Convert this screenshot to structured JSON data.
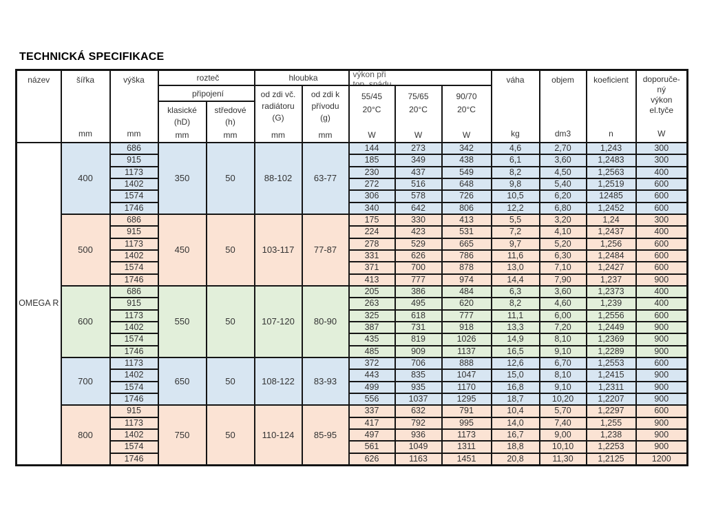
{
  "page": {
    "title": "TECHNICKÁ SPECIFIKACE"
  },
  "colors": {
    "blue": "#d8e6f2",
    "salmon": "#fbe3d4",
    "green": "#e2efda"
  },
  "table": {
    "product_name": "OMEGA R",
    "header": {
      "name": "název",
      "width": "šířka",
      "height": "výška",
      "pitch_group": "rozteč",
      "connection": "připojení",
      "pitch_classic": "klasické\n(hD)",
      "pitch_central": "středové\n(h)",
      "depth_group": "hloubka",
      "depth_g": "od zdi  vč.\nradiátoru\n(G)",
      "depth_small_g": "od zdi  k\npřívodu\n(g)",
      "power_group": "výkon při\ntop. spádu",
      "power_5545": "55/45\n20°C",
      "power_7565": "75/65\n20°C",
      "power_9070": "90/70\n20°C",
      "weight": "váha",
      "volume": "objem",
      "coefficient": "koeficient",
      "recommended": "doporuče-\nný\nvýkon\nel.tyče",
      "unit_mm": "mm",
      "unit_w": "W",
      "unit_kg": "kg",
      "unit_dm3": "dm3",
      "unit_n": "n"
    },
    "groups": [
      {
        "width": "400",
        "color": "blue",
        "pitch_classic": "350",
        "pitch_central": "50",
        "depth_g": "88-102",
        "depth_small_g": "63-77",
        "rows": [
          [
            "686",
            "144",
            "273",
            "342",
            "4,6",
            "2,70",
            "1,243",
            "300"
          ],
          [
            "915",
            "185",
            "349",
            "438",
            "6,1",
            "3,60",
            "1,2483",
            "300"
          ],
          [
            "1173",
            "230",
            "437",
            "549",
            "8,2",
            "4,50",
            "1,2563",
            "400"
          ],
          [
            "1402",
            "272",
            "516",
            "648",
            "9,8",
            "5,40",
            "1,2519",
            "600"
          ],
          [
            "1574",
            "306",
            "578",
            "726",
            "10,5",
            "6,20",
            "12485",
            "600"
          ],
          [
            "1746",
            "340",
            "642",
            "806",
            "12,2",
            "6,80",
            "1,2452",
            "600"
          ]
        ]
      },
      {
        "width": "500",
        "color": "salmon",
        "pitch_classic": "450",
        "pitch_central": "50",
        "depth_g": "103-117",
        "depth_small_g": "77-87",
        "rows": [
          [
            "686",
            "175",
            "330",
            "413",
            "5,5",
            "3,20",
            "1,24",
            "300"
          ],
          [
            "915",
            "224",
            "423",
            "531",
            "7,2",
            "4,10",
            "1,2437",
            "400"
          ],
          [
            "1173",
            "278",
            "529",
            "665",
            "9,7",
            "5,20",
            "1,256",
            "600"
          ],
          [
            "1402",
            "331",
            "626",
            "786",
            "11,6",
            "6,30",
            "1,2484",
            "600"
          ],
          [
            "1574",
            "371",
            "700",
            "878",
            "13,0",
            "7,10",
            "1,2427",
            "600"
          ],
          [
            "1746",
            "413",
            "777",
            "974",
            "14,4",
            "7,90",
            "1,237",
            "900"
          ]
        ]
      },
      {
        "width": "600",
        "color": "green",
        "pitch_classic": "550",
        "pitch_central": "50",
        "depth_g": "107-120",
        "depth_small_g": "80-90",
        "rows": [
          [
            "686",
            "205",
            "386",
            "484",
            "6,3",
            "3,60",
            "1,2373",
            "400"
          ],
          [
            "915",
            "263",
            "495",
            "620",
            "8,2",
            "4,60",
            "1,239",
            "400"
          ],
          [
            "1173",
            "325",
            "618",
            "777",
            "11,1",
            "6,00",
            "1,2556",
            "600"
          ],
          [
            "1402",
            "387",
            "731",
            "918",
            "13,3",
            "7,20",
            "1,2449",
            "900"
          ],
          [
            "1574",
            "435",
            "819",
            "1026",
            "14,9",
            "8,10",
            "1,2369",
            "900"
          ],
          [
            "1746",
            "485",
            "909",
            "1137",
            "16,5",
            "9,10",
            "1,2289",
            "900"
          ]
        ]
      },
      {
        "width": "700",
        "color": "blue",
        "pitch_classic": "650",
        "pitch_central": "50",
        "depth_g": "108-122",
        "depth_small_g": "83-93",
        "rows": [
          [
            "1173",
            "372",
            "706",
            "888",
            "12,6",
            "6,70",
            "1,2553",
            "600"
          ],
          [
            "1402",
            "443",
            "835",
            "1047",
            "15,0",
            "8,10",
            "1,2415",
            "900"
          ],
          [
            "1574",
            "499",
            "935",
            "1170",
            "16,8",
            "9,10",
            "1,2311",
            "900"
          ],
          [
            "1746",
            "556",
            "1037",
            "1295",
            "18,7",
            "10,20",
            "1,2207",
            "900"
          ]
        ]
      },
      {
        "width": "800",
        "color": "salmon",
        "pitch_classic": "750",
        "pitch_central": "50",
        "depth_g": "110-124",
        "depth_small_g": "85-95",
        "rows": [
          [
            "915",
            "337",
            "632",
            "791",
            "10,4",
            "5,70",
            "1,2297",
            "600"
          ],
          [
            "1173",
            "417",
            "792",
            "995",
            "14,0",
            "7,40",
            "1,255",
            "900"
          ],
          [
            "1402",
            "497",
            "936",
            "1173",
            "16,7",
            "9,00",
            "1,238",
            "900"
          ],
          [
            "1574",
            "561",
            "1049",
            "1311",
            "18,8",
            "10,10",
            "1,2253",
            "900"
          ],
          [
            "1746",
            "626",
            "1163",
            "1451",
            "20,8",
            "11,30",
            "1,2125",
            "1200"
          ]
        ]
      }
    ]
  }
}
